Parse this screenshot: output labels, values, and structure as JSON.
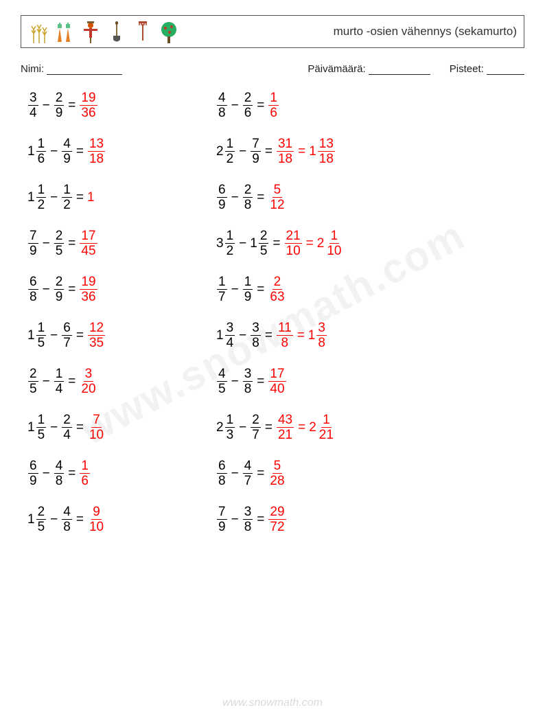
{
  "header": {
    "title": "murto -osien vähennys (sekamurto)",
    "icons": [
      "wheat-icon",
      "carrots-icon",
      "scarecrow-icon",
      "shovel-icon",
      "rake-icon",
      "tree-icon"
    ]
  },
  "meta": {
    "name_label": "Nimi:",
    "date_label": "Päivämäärä:",
    "score_label": "Pisteet:",
    "name_underline_width": 110,
    "date_underline_width": 90,
    "score_underline_width": 55
  },
  "colors": {
    "text": "#000000",
    "answer": "#ff0000",
    "border": "#555555",
    "watermark": "rgba(0,0,0,0.05)"
  },
  "problems": [
    [
      {
        "a": {
          "n": 3,
          "d": 4
        },
        "b": {
          "n": 2,
          "d": 9
        },
        "ans": [
          {
            "n": 19,
            "d": 36
          }
        ]
      },
      {
        "a": {
          "n": 4,
          "d": 8
        },
        "b": {
          "n": 2,
          "d": 6
        },
        "ans": [
          {
            "n": 1,
            "d": 6
          }
        ]
      }
    ],
    [
      {
        "a": {
          "w": 1,
          "n": 1,
          "d": 6
        },
        "b": {
          "n": 4,
          "d": 9
        },
        "ans": [
          {
            "n": 13,
            "d": 18
          }
        ]
      },
      {
        "a": {
          "w": 2,
          "n": 1,
          "d": 2
        },
        "b": {
          "n": 7,
          "d": 9
        },
        "ans": [
          {
            "n": 31,
            "d": 18
          },
          {
            "w": 1,
            "n": 13,
            "d": 18
          }
        ]
      }
    ],
    [
      {
        "a": {
          "w": 1,
          "n": 1,
          "d": 2
        },
        "b": {
          "n": 1,
          "d": 2
        },
        "ans": [
          {
            "int": 1
          }
        ]
      },
      {
        "a": {
          "n": 6,
          "d": 9
        },
        "b": {
          "n": 2,
          "d": 8
        },
        "ans": [
          {
            "n": 5,
            "d": 12
          }
        ]
      }
    ],
    [
      {
        "a": {
          "n": 7,
          "d": 9
        },
        "b": {
          "n": 2,
          "d": 5
        },
        "ans": [
          {
            "n": 17,
            "d": 45
          }
        ]
      },
      {
        "a": {
          "w": 3,
          "n": 1,
          "d": 2
        },
        "b": {
          "w": 1,
          "n": 2,
          "d": 5
        },
        "ans": [
          {
            "n": 21,
            "d": 10
          },
          {
            "w": 2,
            "n": 1,
            "d": 10
          }
        ]
      }
    ],
    [
      {
        "a": {
          "n": 6,
          "d": 8
        },
        "b": {
          "n": 2,
          "d": 9
        },
        "ans": [
          {
            "n": 19,
            "d": 36
          }
        ]
      },
      {
        "a": {
          "n": 1,
          "d": 7
        },
        "b": {
          "n": 1,
          "d": 9
        },
        "ans": [
          {
            "n": 2,
            "d": 63
          }
        ]
      }
    ],
    [
      {
        "a": {
          "w": 1,
          "n": 1,
          "d": 5
        },
        "b": {
          "n": 6,
          "d": 7
        },
        "ans": [
          {
            "n": 12,
            "d": 35
          }
        ]
      },
      {
        "a": {
          "w": 1,
          "n": 3,
          "d": 4
        },
        "b": {
          "n": 3,
          "d": 8
        },
        "ans": [
          {
            "n": 11,
            "d": 8
          },
          {
            "w": 1,
            "n": 3,
            "d": 8
          }
        ]
      }
    ],
    [
      {
        "a": {
          "n": 2,
          "d": 5
        },
        "b": {
          "n": 1,
          "d": 4
        },
        "ans": [
          {
            "n": 3,
            "d": 20
          }
        ]
      },
      {
        "a": {
          "n": 4,
          "d": 5
        },
        "b": {
          "n": 3,
          "d": 8
        },
        "ans": [
          {
            "n": 17,
            "d": 40
          }
        ]
      }
    ],
    [
      {
        "a": {
          "w": 1,
          "n": 1,
          "d": 5
        },
        "b": {
          "n": 2,
          "d": 4
        },
        "ans": [
          {
            "n": 7,
            "d": 10
          }
        ]
      },
      {
        "a": {
          "w": 2,
          "n": 1,
          "d": 3
        },
        "b": {
          "n": 2,
          "d": 7
        },
        "ans": [
          {
            "n": 43,
            "d": 21
          },
          {
            "w": 2,
            "n": 1,
            "d": 21
          }
        ]
      }
    ],
    [
      {
        "a": {
          "n": 6,
          "d": 9
        },
        "b": {
          "n": 4,
          "d": 8
        },
        "ans": [
          {
            "n": 1,
            "d": 6
          }
        ]
      },
      {
        "a": {
          "n": 6,
          "d": 8
        },
        "b": {
          "n": 4,
          "d": 7
        },
        "ans": [
          {
            "n": 5,
            "d": 28
          }
        ]
      }
    ],
    [
      {
        "a": {
          "w": 1,
          "n": 2,
          "d": 5
        },
        "b": {
          "n": 4,
          "d": 8
        },
        "ans": [
          {
            "n": 9,
            "d": 10
          }
        ]
      },
      {
        "a": {
          "n": 7,
          "d": 9
        },
        "b": {
          "n": 3,
          "d": 8
        },
        "ans": [
          {
            "n": 29,
            "d": 72
          }
        ]
      }
    ]
  ],
  "watermark": "www.snowmath.com",
  "footer": "www.snowmath.com"
}
